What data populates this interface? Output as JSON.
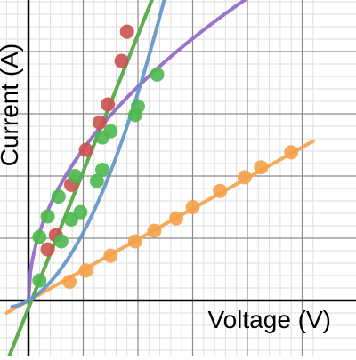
{
  "chart_data": {
    "type": "scatter",
    "title": "",
    "xlabel": "Voltage (V)",
    "ylabel": "Current (A)",
    "xlim": [
      -0.4,
      5.2
    ],
    "ylim": [
      -0.9,
      4.85
    ],
    "grid": true,
    "legend": "none",
    "series": [
      {
        "color": "#f5a14a",
        "points": [
          [
            0.75,
            0.3
          ],
          [
            1.05,
            0.48
          ],
          [
            1.5,
            0.72
          ],
          [
            1.95,
            0.95
          ],
          [
            2.3,
            1.12
          ],
          [
            2.7,
            1.32
          ],
          [
            3.0,
            1.5
          ],
          [
            3.5,
            1.76
          ],
          [
            3.95,
            1.98
          ],
          [
            4.25,
            2.14
          ],
          [
            4.8,
            2.38
          ]
        ],
        "fit": [
          [
            -0.4,
            -0.2
          ],
          [
            5.2,
            2.56
          ]
        ]
      },
      {
        "color": "#cc5151",
        "points": [
          [
            0.35,
            0.82
          ],
          [
            0.5,
            1.05
          ],
          [
            0.78,
            1.86
          ],
          [
            1.05,
            2.42
          ],
          [
            1.3,
            2.86
          ],
          [
            1.45,
            3.15
          ],
          [
            1.7,
            3.85
          ],
          [
            1.8,
            4.32
          ]
        ],
        "fit": [
          [
            -0.4,
            -1.0
          ],
          [
            3.2,
            6.9
          ]
        ]
      },
      {
        "color": "#4db84d",
        "points": [
          [
            0.2,
            0.32
          ],
          [
            0.2,
            1.02
          ],
          [
            0.35,
            1.35
          ],
          [
            0.55,
            1.67
          ],
          [
            0.6,
            0.95
          ],
          [
            0.78,
            1.3
          ],
          [
            0.85,
            2.0
          ],
          [
            0.95,
            1.42
          ],
          [
            1.25,
            1.92
          ],
          [
            1.35,
            2.1
          ],
          [
            1.35,
            2.62
          ],
          [
            1.5,
            2.72
          ],
          [
            1.95,
            2.98
          ],
          [
            2.0,
            3.12
          ],
          [
            2.35,
            3.63
          ]
        ],
        "fit": [
          [
            -0.4,
            -1.0
          ],
          [
            3.2,
            6.9
          ]
        ]
      },
      {
        "color": "#8d68c4",
        "fit_sqrt": {
          "a": 2.43,
          "to": 4.2
        }
      },
      {
        "color": "#5f93c8",
        "fit_quad": {
          "a": 0.58,
          "b": 0.51,
          "from": -0.3,
          "to": 3.2
        }
      }
    ]
  }
}
